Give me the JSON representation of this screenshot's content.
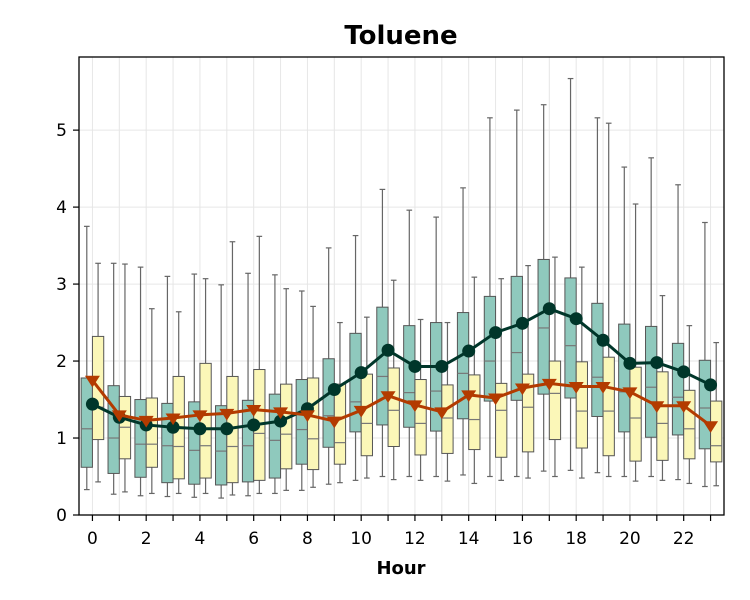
{
  "chart_data": {
    "type": "box",
    "title": "Toluene",
    "xlabel": "Hour",
    "ylabel": "",
    "xlim": [
      -0.5,
      23.5
    ],
    "ylim": [
      0,
      5.95
    ],
    "x_ticks": [
      0,
      2,
      4,
      6,
      8,
      10,
      12,
      14,
      16,
      18,
      20,
      22
    ],
    "y_ticks": [
      0,
      1,
      2,
      3,
      4,
      5
    ],
    "grid": true,
    "legend": "none",
    "colors": {
      "box_a": "#8fc9bd",
      "box_b": "#fbf7b8",
      "box_edge": "#555555",
      "whisker": "#666666",
      "line_a": "#00362a",
      "line_b": "#b33b00"
    },
    "hours": [
      0,
      1,
      2,
      3,
      4,
      5,
      6,
      7,
      8,
      9,
      10,
      11,
      12,
      13,
      14,
      15,
      16,
      17,
      18,
      19,
      20,
      21,
      22,
      23
    ],
    "series": [
      {
        "marker": "circle",
        "color": "#00362a",
        "box_color": "#8fc9bd",
        "mean": [
          1.44,
          1.27,
          1.17,
          1.14,
          1.12,
          1.12,
          1.17,
          1.22,
          1.38,
          1.63,
          1.85,
          2.14,
          1.93,
          1.93,
          2.13,
          2.37,
          2.49,
          2.68,
          2.55,
          2.27,
          1.97,
          1.98,
          1.86,
          1.69
        ],
        "q1": [
          0.62,
          0.54,
          0.49,
          0.42,
          0.4,
          0.39,
          0.43,
          0.48,
          0.66,
          0.88,
          1.08,
          1.17,
          1.14,
          1.09,
          1.25,
          1.48,
          1.49,
          1.57,
          1.52,
          1.28,
          1.08,
          1.01,
          1.04,
          0.86
        ],
        "median": [
          1.12,
          1.0,
          0.92,
          0.9,
          0.84,
          0.83,
          0.9,
          0.97,
          1.11,
          1.29,
          1.47,
          1.8,
          1.59,
          1.61,
          1.84,
          2.0,
          2.11,
          2.43,
          2.2,
          1.79,
          1.6,
          1.66,
          1.53,
          1.39
        ],
        "q3": [
          1.78,
          1.68,
          1.5,
          1.45,
          1.47,
          1.42,
          1.49,
          1.57,
          1.76,
          2.03,
          2.36,
          2.7,
          2.46,
          2.5,
          2.63,
          2.84,
          3.1,
          3.32,
          3.08,
          2.75,
          2.48,
          2.45,
          2.23,
          2.01
        ],
        "whisker_low": [
          0.33,
          0.27,
          0.25,
          0.24,
          0.23,
          0.22,
          0.25,
          0.28,
          0.32,
          0.4,
          0.45,
          0.5,
          0.5,
          0.5,
          0.52,
          0.5,
          0.5,
          0.57,
          0.58,
          0.55,
          0.5,
          0.5,
          0.46,
          0.37
        ],
        "whisker_high": [
          3.75,
          3.27,
          3.22,
          3.1,
          3.13,
          2.99,
          3.14,
          3.12,
          2.91,
          3.47,
          3.63,
          4.23,
          3.96,
          3.87,
          4.25,
          5.16,
          5.26,
          5.33,
          5.67,
          5.16,
          4.52,
          4.64,
          4.29,
          3.8
        ]
      },
      {
        "marker": "triangle-down",
        "color": "#b33b00",
        "box_color": "#fbf7b8",
        "mean": [
          1.75,
          1.3,
          1.23,
          1.26,
          1.3,
          1.32,
          1.37,
          1.34,
          1.3,
          1.22,
          1.36,
          1.55,
          1.43,
          1.34,
          1.56,
          1.52,
          1.65,
          1.71,
          1.67,
          1.67,
          1.6,
          1.42,
          1.42,
          1.16
        ],
        "q1": [
          0.98,
          0.73,
          0.62,
          0.47,
          0.48,
          0.42,
          0.45,
          0.6,
          0.59,
          0.66,
          0.77,
          0.89,
          0.78,
          0.8,
          0.85,
          0.75,
          0.82,
          0.98,
          0.87,
          0.77,
          0.7,
          0.71,
          0.73,
          0.69
        ],
        "median": [
          1.4,
          1.14,
          0.92,
          0.89,
          0.9,
          0.89,
          1.06,
          1.05,
          0.99,
          0.94,
          1.19,
          1.36,
          1.19,
          1.26,
          1.24,
          1.36,
          1.4,
          1.58,
          1.35,
          1.35,
          1.26,
          1.19,
          1.12,
          0.9
        ],
        "q3": [
          2.32,
          1.54,
          1.52,
          1.8,
          1.97,
          1.8,
          1.89,
          1.7,
          1.78,
          1.7,
          1.83,
          1.91,
          1.76,
          1.69,
          1.82,
          1.71,
          1.83,
          2.0,
          1.99,
          2.05,
          1.92,
          1.86,
          1.62,
          1.48
        ],
        "whisker_low": [
          0.43,
          0.3,
          0.28,
          0.28,
          0.28,
          0.26,
          0.28,
          0.32,
          0.36,
          0.42,
          0.48,
          0.46,
          0.45,
          0.44,
          0.41,
          0.45,
          0.48,
          0.5,
          0.48,
          0.5,
          0.44,
          0.45,
          0.41,
          0.38
        ],
        "whisker_high": [
          3.27,
          3.26,
          2.68,
          2.64,
          3.07,
          3.55,
          3.62,
          2.94,
          2.71,
          2.5,
          2.57,
          3.05,
          2.54,
          2.5,
          3.09,
          3.07,
          3.24,
          3.35,
          3.22,
          5.09,
          4.04,
          2.85,
          2.46,
          2.24
        ]
      }
    ]
  }
}
